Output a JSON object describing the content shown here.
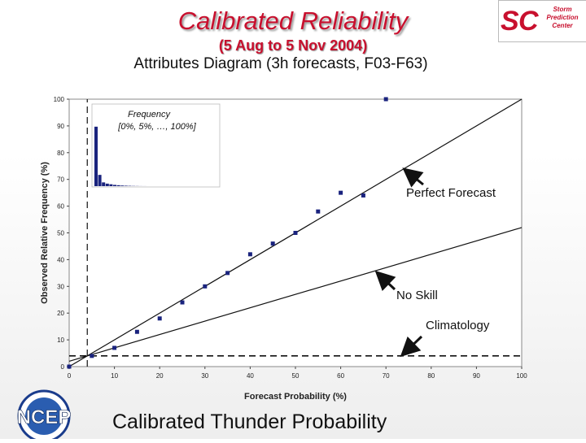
{
  "header": {
    "title": "Calibrated Reliability",
    "subtitle": "(5 Aug to 5 Nov 2004)",
    "heading": "Attributes Diagram (3h forecasts, F03-F63)"
  },
  "logos": {
    "spc_text": [
      "Storm",
      "Prediction",
      "Center"
    ],
    "ncep_text": "NCEP"
  },
  "footer": {
    "text": "Calibrated Thunder Probability"
  },
  "annotations": {
    "perfect": "Perfect Forecast",
    "no_skill": "No Skill",
    "climatology": "Climatology"
  },
  "inset": {
    "line1": "Frequency",
    "line2": "[0%, 5%, …, 100%]",
    "values": [
      95,
      18,
      6,
      4,
      3,
      2,
      1.5,
      1,
      0.7,
      0.5,
      0.3,
      0.2,
      0.1,
      0.05
    ]
  },
  "colors": {
    "title": "#c8102e",
    "points": "#1a237e",
    "inset_bars": "#1a237e"
  },
  "chart_data": {
    "type": "scatter",
    "xlabel": "Forecast Probability (%)",
    "ylabel": "Observed Relative Frequency (%)",
    "xlim": [
      0,
      100
    ],
    "ylim": [
      0,
      100
    ],
    "xticks": [
      0,
      10,
      20,
      30,
      40,
      50,
      60,
      70,
      80,
      90,
      100
    ],
    "yticks": [
      0,
      10,
      20,
      30,
      40,
      50,
      60,
      70,
      80,
      90,
      100
    ],
    "grid": false,
    "climatology": 4,
    "series": [
      {
        "x": [
          0,
          5,
          10,
          15,
          20,
          25,
          30,
          35,
          40,
          45,
          50,
          55,
          60,
          65,
          70
        ],
        "y": [
          0,
          4,
          7,
          13,
          18,
          24,
          30,
          35,
          42,
          46,
          50,
          58,
          65,
          64,
          100
        ]
      }
    ],
    "lines": {
      "perfect": [
        [
          0,
          0
        ],
        [
          100,
          100
        ]
      ],
      "no_skill": [
        [
          0,
          2
        ],
        [
          100,
          52
        ]
      ]
    }
  }
}
